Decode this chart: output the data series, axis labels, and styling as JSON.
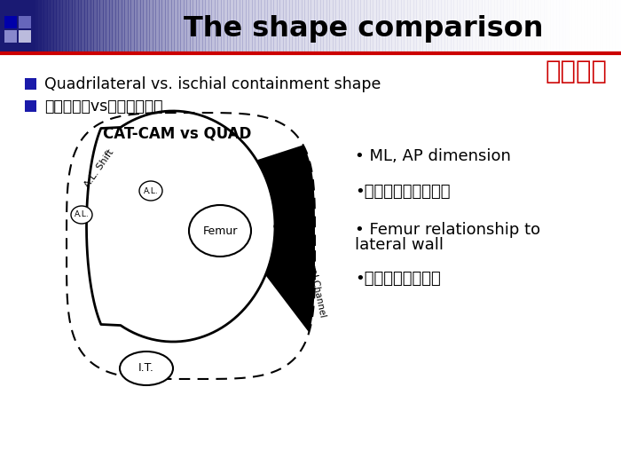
{
  "title_en": "The shape comparison",
  "title_zh": "形状比较",
  "bullet1_en": "Quadrilateral vs. ischial containment shape",
  "bullet1_zh": "四边形形状vs坐骨遇制形状",
  "diagram_title": "CAT-CAM vs QUAD",
  "rb0": "• ML, AP dimension",
  "rb1": "•内外侧，前后侧尺寸",
  "rb2_a": "• Femur relationship to",
  "rb2_b": "lateral wall",
  "rb3": "•股骨和外侧壁关系",
  "bg_color": "#ffffff",
  "title_color": "#000000",
  "red_line_color": "#cc0000",
  "bullet_square_color": "#1a1aaa",
  "zh_title_color": "#cc0000",
  "header_dark": "#1a1a7a",
  "header_mid": "#4444aa",
  "header_light": "#aaaacc"
}
